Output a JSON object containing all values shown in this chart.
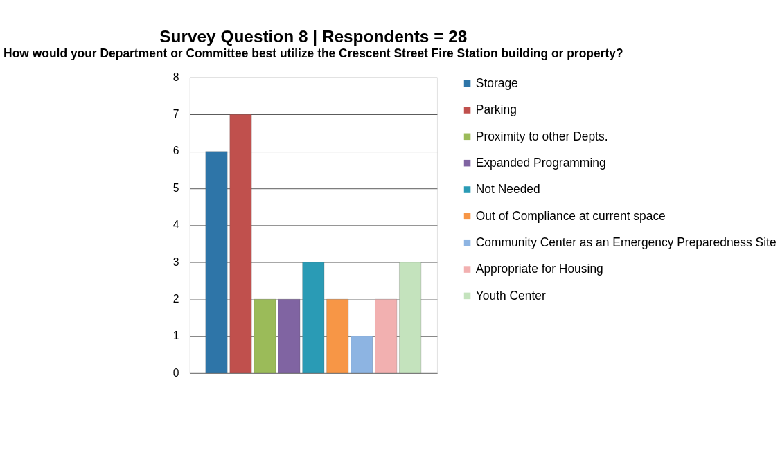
{
  "chart_data": {
    "type": "bar",
    "title": "Survey Question 8 | Respondents = 28",
    "subtitle": "How would your Department or Committee best utilize the Crescent Street Fire Station building or property?",
    "categories": [
      null
    ],
    "series": [
      {
        "name": "Storage",
        "color": "#2e75a8",
        "values": [
          6
        ]
      },
      {
        "name": "Parking",
        "color": "#c0504d",
        "values": [
          7
        ]
      },
      {
        "name": "Proximity to other Depts.",
        "color": "#9bbb59",
        "values": [
          2
        ]
      },
      {
        "name": "Expanded Programming",
        "color": "#8064a2",
        "values": [
          2
        ]
      },
      {
        "name": "Not Needed",
        "color": "#2a9bb5",
        "values": [
          3
        ]
      },
      {
        "name": "Out of Compliance at current space",
        "color": "#f79646",
        "values": [
          2
        ]
      },
      {
        "name": "Community Center as an Emergency Preparedness Site",
        "color": "#8db4e2",
        "values": [
          1
        ]
      },
      {
        "name": "Appropriate for Housing",
        "color": "#f2b0b0",
        "values": [
          2
        ]
      },
      {
        "name": "Youth Center",
        "color": "#c4e3bd",
        "values": [
          3
        ]
      }
    ],
    "ylim": [
      0,
      8
    ],
    "yticks": [
      0,
      1,
      2,
      3,
      4,
      5,
      6,
      7,
      8
    ],
    "grid": "y",
    "legend": "right"
  }
}
